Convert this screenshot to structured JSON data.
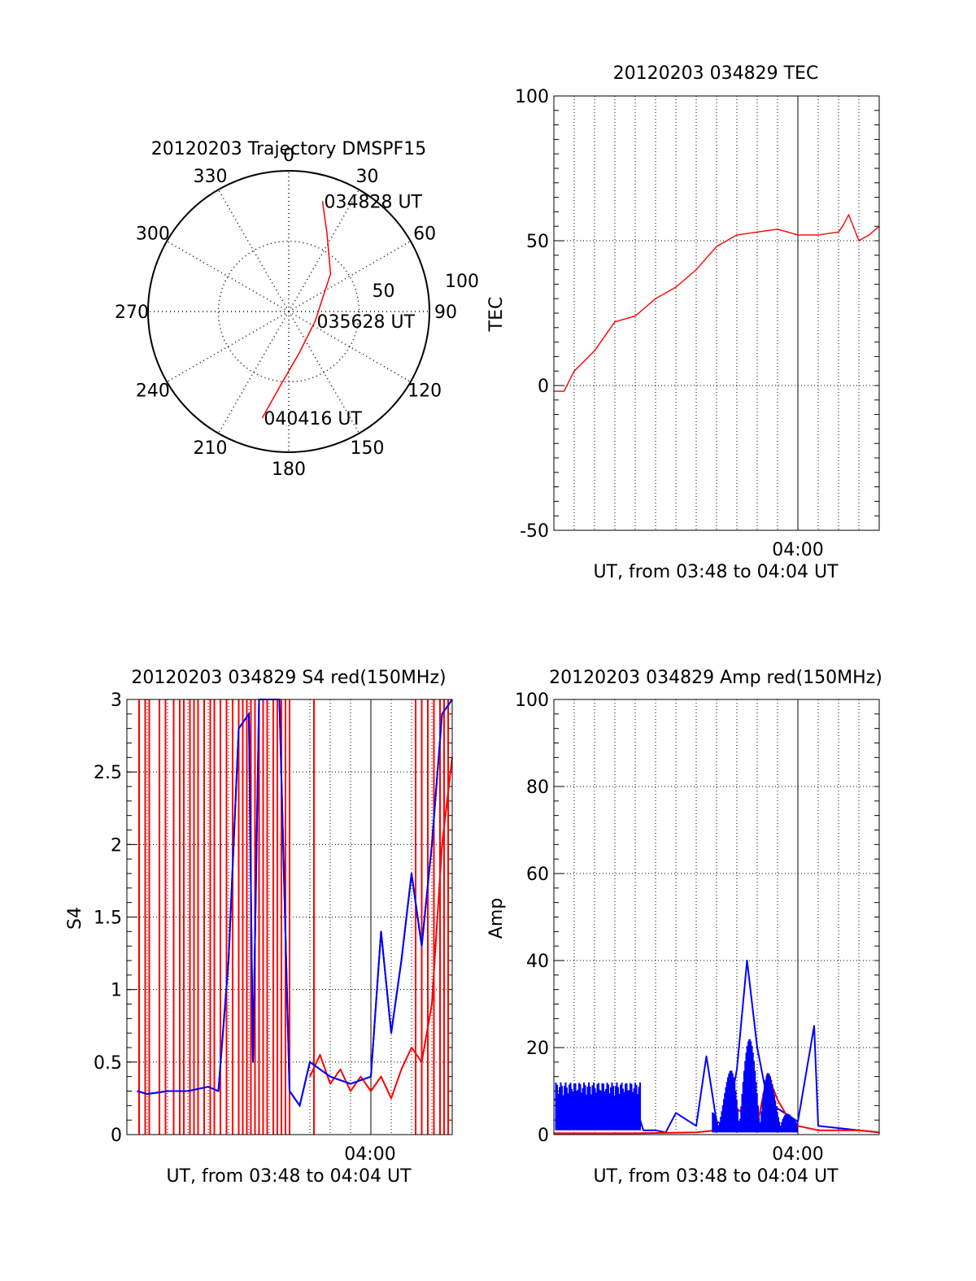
{
  "chart_data": [
    {
      "id": "trajectory",
      "type": "polar",
      "title": "20120203 Trajectory DMSPF15",
      "angle_labels": [
        "0",
        "30",
        "60",
        "90",
        "120",
        "150",
        "180",
        "210",
        "240",
        "270",
        "300",
        "330"
      ],
      "radius_labels": [
        "50",
        "100"
      ],
      "rmax": 100,
      "series": [
        {
          "color": "#ff0000",
          "points": [
            {
              "az": 17,
              "el": 18
            },
            {
              "az": 26,
              "el": 38
            },
            {
              "az": 48,
              "el": 60
            },
            {
              "az": 110,
              "el": 80
            },
            {
              "az": 165,
              "el": 70
            },
            {
              "az": 186,
              "el": 48
            },
            {
              "az": 194,
              "el": 22
            }
          ]
        }
      ],
      "annotations": [
        {
          "label": "034828 UT",
          "az": 17,
          "el": 18
        },
        {
          "label": "035628 UT",
          "az": 110,
          "el": 80
        },
        {
          "label": "040416 UT",
          "az": 194,
          "el": 22
        }
      ]
    },
    {
      "id": "tec",
      "type": "line",
      "title": "20120203 034829 TEC",
      "xlabel": "UT, from 03:48 to 04:04 UT",
      "ylabel": "TEC",
      "xlim": [
        0,
        16
      ],
      "ylim": [
        -50,
        100
      ],
      "yticks": [
        "-50",
        "0",
        "50",
        "100"
      ],
      "xtick_label": "04:00",
      "grid": true,
      "series": [
        {
          "color": "#ff0000",
          "x": [
            0,
            0.5,
            1,
            2,
            3,
            4,
            5,
            6,
            7,
            8,
            9,
            10,
            11,
            11.5,
            12,
            13,
            14,
            14.2,
            14.5,
            15,
            15.5,
            16
          ],
          "y": [
            -2,
            -2,
            5,
            12,
            22,
            24,
            30,
            34,
            40,
            48,
            52,
            53,
            54,
            53,
            52,
            52,
            53,
            55,
            59,
            50,
            52,
            55
          ]
        }
      ]
    },
    {
      "id": "s4",
      "type": "line",
      "title": "20120203 034829 S4 red(150MHz)",
      "xlabel": "UT, from 03:48 to 04:04 UT",
      "ylabel": "S4",
      "xlim": [
        0,
        16
      ],
      "ylim": [
        0,
        3
      ],
      "yticks": [
        "0",
        "0.5",
        "1",
        "1.5",
        "2",
        "2.5",
        "3"
      ],
      "xtick_label": "04:00",
      "grid": true,
      "series": [
        {
          "color": "#0000ff",
          "x": [
            0.5,
            1,
            2,
            3,
            4,
            4.5,
            5,
            5.5,
            6,
            6.2,
            6.5,
            7,
            7.5,
            8,
            8.5,
            9,
            10,
            11,
            12,
            12.5,
            13,
            13.5,
            14,
            14.5,
            15,
            15.5,
            16
          ],
          "y": [
            0.3,
            0.28,
            0.3,
            0.3,
            0.33,
            0.3,
            1.2,
            2.8,
            2.9,
            0.5,
            3,
            3,
            3,
            0.3,
            0.2,
            0.5,
            0.4,
            0.35,
            0.4,
            1.4,
            0.7,
            1.2,
            1.8,
            1.3,
            2.0,
            2.9,
            3.0
          ]
        },
        {
          "color": "#ff0000",
          "x": [
            9,
            9.5,
            10,
            10.5,
            11,
            11.5,
            12,
            12.5,
            13,
            13.5,
            14,
            14.5,
            15,
            15.5,
            16
          ],
          "y": [
            0.4,
            0.55,
            0.35,
            0.45,
            0.3,
            0.4,
            0.3,
            0.4,
            0.25,
            0.45,
            0.6,
            0.5,
            0.9,
            2.0,
            2.6
          ]
        }
      ]
    },
    {
      "id": "amp",
      "type": "line",
      "title": "20120203 034829 Amp red(150MHz)",
      "xlabel": "UT, from 03:48 to 04:04 UT",
      "ylabel": "Amp",
      "xlim": [
        0,
        16
      ],
      "ylim": [
        0,
        100
      ],
      "yticks": [
        "0",
        "20",
        "40",
        "60",
        "80",
        "100"
      ],
      "xtick_label": "04:00",
      "grid": true,
      "series": [
        {
          "color": "#0000ff",
          "x": [
            0,
            1,
            2,
            3,
            4,
            4.4,
            5,
            5.5,
            6,
            7,
            7.5,
            8,
            8.5,
            9,
            9.5,
            10,
            10.5,
            11,
            12,
            12.8,
            13,
            14,
            15,
            16
          ],
          "y": [
            8,
            9,
            8,
            8,
            7,
            1,
            1,
            0.5,
            5,
            2,
            18,
            3,
            2,
            15,
            40,
            20,
            8,
            6,
            3,
            25,
            2,
            1.5,
            1,
            0.5
          ]
        },
        {
          "color": "#ff0000",
          "x": [
            0,
            4,
            7,
            8,
            9,
            9.5,
            10,
            10.5,
            11,
            11.5,
            12,
            13,
            14,
            15,
            16
          ],
          "y": [
            0.3,
            0.3,
            0.5,
            1,
            6,
            4,
            2,
            14,
            8,
            4,
            2,
            1,
            1,
            1,
            0.5
          ]
        }
      ]
    }
  ]
}
